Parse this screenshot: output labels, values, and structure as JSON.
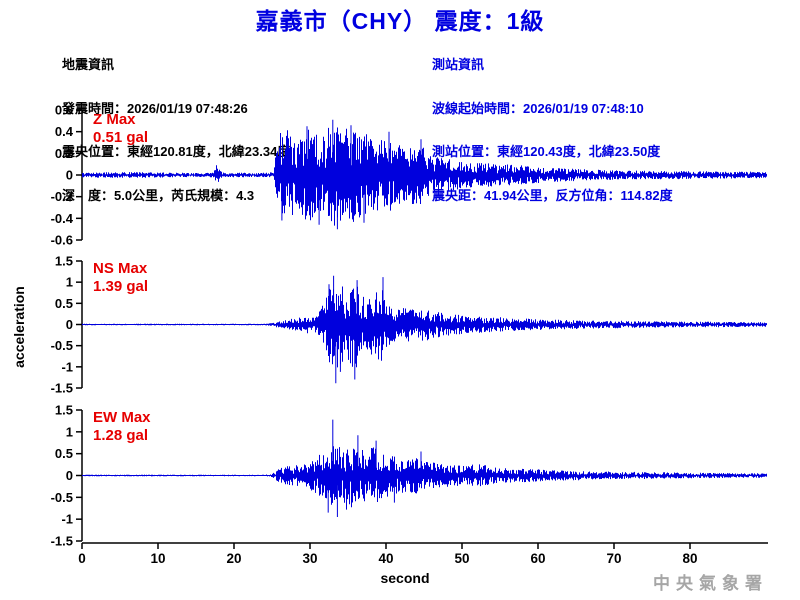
{
  "title": "嘉義市（CHY） 震度：1級",
  "info_left": {
    "header": "地震資訊",
    "lines": [
      "發震時間：2026/01/19 07:48:26",
      "震央位置：東經120.81度，北緯23.34度",
      "深　度：5.0公里，芮氏規模：4.3"
    ]
  },
  "info_right": {
    "header": "測站資訊",
    "lines": [
      "波線起始時間：2026/01/19 07:48:10",
      "測站位置：東經120.43度，北緯23.50度",
      "震央距：41.94公里，反方位角：114.82度"
    ]
  },
  "watermark": "中央氣象署",
  "colors": {
    "blue_text": "#0000e0",
    "trace_blue": "#0000dd",
    "label_red": "#e60000",
    "axis_black": "#000000",
    "watermark_gray": "#a6a6a6"
  },
  "chart_data": {
    "type": "line",
    "kind": "three-component seismogram (acceleration waveform)",
    "xlabel": "second",
    "ylabel": "acceleration",
    "x_range": [
      0,
      90
    ],
    "xticks": [
      0,
      10,
      20,
      30,
      40,
      50,
      60,
      70,
      80
    ],
    "grid": false,
    "legend": "none",
    "channels": [
      {
        "name": "Z",
        "max_label": "Z Max",
        "max_value_label": "0.51 gal",
        "max_gal": 0.51,
        "max_time_s": 33,
        "p_onset_s": 25.3,
        "ylim": [
          -0.6,
          0.6
        ],
        "yticks": [
          0.6,
          0.4,
          0.2,
          0,
          -0.2,
          -0.4,
          -0.6
        ],
        "envelope": [
          [
            0,
            0.022
          ],
          [
            4,
            0.028
          ],
          [
            8,
            0.026
          ],
          [
            12,
            0.022
          ],
          [
            16,
            0.02
          ],
          [
            17.2,
            0.028
          ],
          [
            17.7,
            0.085
          ],
          [
            18.3,
            0.03
          ],
          [
            19,
            0.022
          ],
          [
            24,
            0.02
          ],
          [
            25.2,
            0.028
          ],
          [
            25.5,
            0.25
          ],
          [
            26,
            0.4
          ],
          [
            27,
            0.42
          ],
          [
            28,
            0.36
          ],
          [
            29.5,
            0.44
          ],
          [
            31,
            0.38
          ],
          [
            33,
            0.48
          ],
          [
            34,
            0.42
          ],
          [
            35.5,
            0.44
          ],
          [
            37,
            0.4
          ],
          [
            38.5,
            0.33
          ],
          [
            40,
            0.36
          ],
          [
            41.5,
            0.28
          ],
          [
            43,
            0.26
          ],
          [
            44.5,
            0.29
          ],
          [
            45.5,
            0.2
          ],
          [
            47,
            0.16
          ],
          [
            49,
            0.14
          ],
          [
            51,
            0.12
          ],
          [
            53,
            0.11
          ],
          [
            55,
            0.1
          ],
          [
            57,
            0.095
          ],
          [
            59,
            0.08
          ],
          [
            61,
            0.07
          ],
          [
            64,
            0.06
          ],
          [
            67,
            0.05
          ],
          [
            70,
            0.045
          ],
          [
            74,
            0.04
          ],
          [
            78,
            0.038
          ],
          [
            82,
            0.035
          ],
          [
            86,
            0.032
          ],
          [
            90,
            0.03
          ]
        ],
        "spikes": [
          [
            17.7,
            0.09
          ],
          [
            26.3,
            -0.42
          ],
          [
            29.6,
            0.45
          ],
          [
            31.2,
            -0.46
          ],
          [
            33,
            0.51
          ],
          [
            33.6,
            -0.5
          ],
          [
            35.4,
            0.46
          ],
          [
            37.1,
            -0.44
          ],
          [
            40.4,
            0.4
          ],
          [
            44.6,
            0.33
          ]
        ]
      },
      {
        "name": "NS",
        "max_label": "NS Max",
        "max_value_label": "1.39 gal",
        "max_gal": 1.39,
        "max_time_s": 33.4,
        "p_onset_s": 25.0,
        "ylim": [
          -1.5,
          1.5
        ],
        "yticks": [
          1.5,
          1,
          0.5,
          0,
          -0.5,
          -1,
          -1.5
        ],
        "envelope": [
          [
            0,
            0.018
          ],
          [
            8,
            0.02
          ],
          [
            16,
            0.018
          ],
          [
            24,
            0.018
          ],
          [
            25,
            0.035
          ],
          [
            26,
            0.09
          ],
          [
            27,
            0.12
          ],
          [
            28,
            0.15
          ],
          [
            29,
            0.19
          ],
          [
            30,
            0.22
          ],
          [
            31,
            0.28
          ],
          [
            31.7,
            0.5
          ],
          [
            32.3,
            0.8
          ],
          [
            33,
            1.15
          ],
          [
            33.5,
            1.25
          ],
          [
            34,
            1.0
          ],
          [
            34.6,
            0.72
          ],
          [
            35.2,
            0.9
          ],
          [
            35.9,
            1.15
          ],
          [
            36.5,
            0.78
          ],
          [
            37.3,
            0.62
          ],
          [
            38.3,
            0.75
          ],
          [
            39.4,
            1.0
          ],
          [
            40,
            0.62
          ],
          [
            40.8,
            0.46
          ],
          [
            42,
            0.4
          ],
          [
            43,
            0.43
          ],
          [
            44,
            0.36
          ],
          [
            45,
            0.4
          ],
          [
            46,
            0.33
          ],
          [
            47.5,
            0.28
          ],
          [
            49,
            0.25
          ],
          [
            51,
            0.22
          ],
          [
            53,
            0.19
          ],
          [
            55,
            0.17
          ],
          [
            57,
            0.15
          ],
          [
            59,
            0.14
          ],
          [
            61,
            0.12
          ],
          [
            64,
            0.11
          ],
          [
            67,
            0.1
          ],
          [
            70,
            0.09
          ],
          [
            74,
            0.08
          ],
          [
            78,
            0.07
          ],
          [
            82,
            0.065
          ],
          [
            86,
            0.06
          ],
          [
            90,
            0.055
          ]
        ],
        "spikes": [
          [
            32.5,
            0.95
          ],
          [
            33.1,
            1.15
          ],
          [
            33.4,
            -1.39
          ],
          [
            34,
            -1.12
          ],
          [
            35.9,
            -1.3
          ],
          [
            36.2,
            1.05
          ],
          [
            39.6,
            1.12
          ]
        ]
      },
      {
        "name": "EW",
        "max_label": "EW Max",
        "max_value_label": "1.28 gal",
        "max_gal": 1.28,
        "max_time_s": 33,
        "p_onset_s": 25.2,
        "ylim": [
          -1.5,
          1.5
        ],
        "yticks": [
          1.5,
          1,
          0.5,
          0,
          -0.5,
          -1,
          -1.5
        ],
        "envelope": [
          [
            0,
            0.018
          ],
          [
            8,
            0.02
          ],
          [
            16,
            0.018
          ],
          [
            24,
            0.018
          ],
          [
            25,
            0.04
          ],
          [
            25.7,
            0.14
          ],
          [
            26.5,
            0.2
          ],
          [
            27.5,
            0.24
          ],
          [
            28.5,
            0.26
          ],
          [
            29.5,
            0.28
          ],
          [
            30.5,
            0.38
          ],
          [
            31.5,
            0.52
          ],
          [
            32.5,
            0.7
          ],
          [
            33,
            0.85
          ],
          [
            33.7,
            0.7
          ],
          [
            34.6,
            0.62
          ],
          [
            35.5,
            0.75
          ],
          [
            36.5,
            0.66
          ],
          [
            37.5,
            0.57
          ],
          [
            38.5,
            0.7
          ],
          [
            39.5,
            0.52
          ],
          [
            40.5,
            0.47
          ],
          [
            41.5,
            0.42
          ],
          [
            42.5,
            0.38
          ],
          [
            43.5,
            0.4
          ],
          [
            44.5,
            0.45
          ],
          [
            45.5,
            0.33
          ],
          [
            47,
            0.28
          ],
          [
            48.5,
            0.26
          ],
          [
            50,
            0.25
          ],
          [
            52,
            0.26
          ],
          [
            54,
            0.21
          ],
          [
            56,
            0.17
          ],
          [
            58,
            0.155
          ],
          [
            60,
            0.14
          ],
          [
            62,
            0.125
          ],
          [
            64,
            0.115
          ],
          [
            67,
            0.1
          ],
          [
            70,
            0.09
          ],
          [
            74,
            0.08
          ],
          [
            78,
            0.07
          ],
          [
            82,
            0.06
          ],
          [
            86,
            0.055
          ],
          [
            90,
            0.05
          ]
        ],
        "spikes": [
          [
            32.4,
            -0.85
          ],
          [
            33,
            1.28
          ],
          [
            33.6,
            -0.95
          ],
          [
            34.8,
            -0.78
          ],
          [
            36.3,
            0.92
          ],
          [
            38.7,
            0.8
          ],
          [
            41.1,
            -0.62
          ],
          [
            44.6,
            0.55
          ]
        ]
      }
    ]
  }
}
